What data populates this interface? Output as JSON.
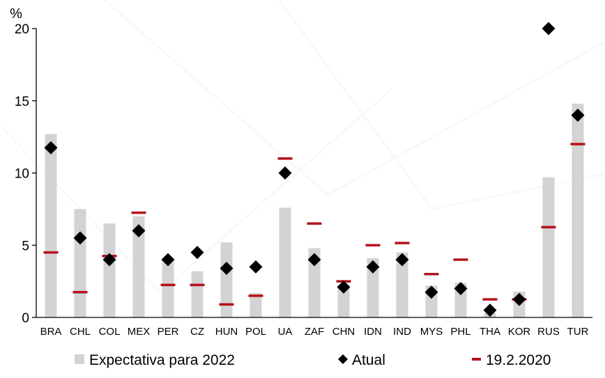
{
  "chart_data": {
    "type": "bar",
    "unit_label": "%",
    "categories": [
      "BRA",
      "CHL",
      "COL",
      "MEX",
      "PER",
      "CZ",
      "HUN",
      "POL",
      "UA",
      "ZAF",
      "CHN",
      "IDN",
      "IND",
      "MYS",
      "PHL",
      "THA",
      "KOR",
      "RUS",
      "TUR"
    ],
    "series": [
      {
        "name": "Expectativa para 2022",
        "kind": "bar",
        "color": "#d3d3d3",
        "values": [
          12.7,
          7.5,
          6.5,
          7.0,
          4.0,
          3.2,
          5.2,
          1.7,
          7.6,
          4.8,
          2.2,
          4.1,
          4.5,
          2.2,
          2.4,
          0.3,
          1.8,
          9.7,
          14.8
        ]
      },
      {
        "name": "Atual",
        "kind": "diamond",
        "color": "#000000",
        "values": [
          11.75,
          5.5,
          4.0,
          6.0,
          4.0,
          4.5,
          3.4,
          3.5,
          10.0,
          4.0,
          2.1,
          3.5,
          4.0,
          1.75,
          2.0,
          0.5,
          1.25,
          20.0,
          14.0
        ]
      },
      {
        "name": "19.2.2020",
        "kind": "dash",
        "color": "#b5121b",
        "values": [
          4.5,
          1.75,
          4.25,
          7.25,
          2.25,
          2.25,
          0.9,
          1.5,
          11.0,
          6.5,
          2.5,
          5.0,
          5.15,
          3.0,
          4.0,
          1.25,
          1.25,
          6.25,
          12.0
        ]
      }
    ],
    "yticks": [
      0,
      5,
      10,
      15,
      20
    ],
    "ylim": [
      0,
      20
    ],
    "grid": false,
    "legend_position": "bottom"
  }
}
